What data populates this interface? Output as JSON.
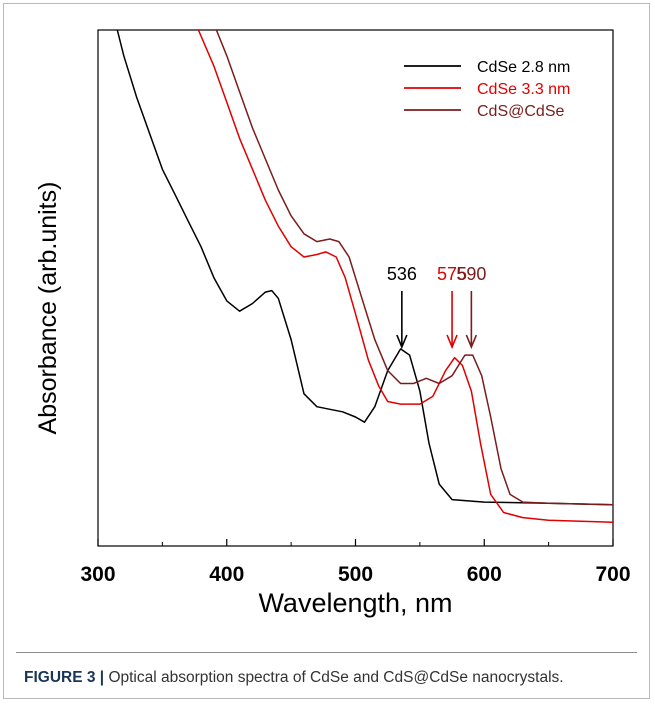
{
  "figure_label": "FIGURE 3 |",
  "caption": "Optical absorption spectra of CdSe and CdS@CdSe nanocrystals.",
  "chart_data": {
    "type": "line",
    "title": "",
    "xlabel": "Wavelength, nm",
    "ylabel": "Absorbance (arb.units)",
    "xlim": [
      300,
      700
    ],
    "ylim": [
      0,
      1
    ],
    "x_ticks": [
      300,
      400,
      500,
      600,
      700
    ],
    "y_ticks_shown": false,
    "grid": false,
    "legend_position": "top-right",
    "series": [
      {
        "name": "CdSe 2.8 nm",
        "color": "#000000",
        "points": [
          [
            315,
            1.0
          ],
          [
            320,
            0.95
          ],
          [
            330,
            0.87
          ],
          [
            340,
            0.8
          ],
          [
            350,
            0.73
          ],
          [
            360,
            0.68
          ],
          [
            370,
            0.63
          ],
          [
            380,
            0.58
          ],
          [
            390,
            0.52
          ],
          [
            400,
            0.475
          ],
          [
            410,
            0.455
          ],
          [
            420,
            0.47
          ],
          [
            430,
            0.492
          ],
          [
            435,
            0.495
          ],
          [
            440,
            0.48
          ],
          [
            450,
            0.4
          ],
          [
            460,
            0.295
          ],
          [
            470,
            0.27
          ],
          [
            480,
            0.265
          ],
          [
            490,
            0.26
          ],
          [
            500,
            0.25
          ],
          [
            507,
            0.24
          ],
          [
            515,
            0.27
          ],
          [
            525,
            0.34
          ],
          [
            535,
            0.382
          ],
          [
            542,
            0.37
          ],
          [
            550,
            0.3
          ],
          [
            557,
            0.2
          ],
          [
            565,
            0.12
          ],
          [
            575,
            0.09
          ],
          [
            600,
            0.085
          ],
          [
            650,
            0.083
          ],
          [
            700,
            0.08
          ]
        ]
      },
      {
        "name": "CdSe 3.3 nm",
        "color": "#e00000",
        "points": [
          [
            378,
            1.0
          ],
          [
            390,
            0.93
          ],
          [
            400,
            0.86
          ],
          [
            410,
            0.79
          ],
          [
            420,
            0.73
          ],
          [
            430,
            0.67
          ],
          [
            440,
            0.62
          ],
          [
            450,
            0.58
          ],
          [
            460,
            0.56
          ],
          [
            470,
            0.565
          ],
          [
            477,
            0.57
          ],
          [
            485,
            0.56
          ],
          [
            492,
            0.52
          ],
          [
            500,
            0.45
          ],
          [
            510,
            0.36
          ],
          [
            518,
            0.31
          ],
          [
            525,
            0.28
          ],
          [
            535,
            0.275
          ],
          [
            550,
            0.275
          ],
          [
            560,
            0.29
          ],
          [
            570,
            0.34
          ],
          [
            577,
            0.365
          ],
          [
            583,
            0.35
          ],
          [
            590,
            0.3
          ],
          [
            597,
            0.2
          ],
          [
            605,
            0.1
          ],
          [
            615,
            0.065
          ],
          [
            630,
            0.055
          ],
          [
            650,
            0.05
          ],
          [
            700,
            0.046
          ]
        ]
      },
      {
        "name": "CdS@CdSe",
        "color": "#7a1c1c",
        "points": [
          [
            392,
            1.0
          ],
          [
            400,
            0.95
          ],
          [
            410,
            0.88
          ],
          [
            420,
            0.81
          ],
          [
            430,
            0.75
          ],
          [
            440,
            0.69
          ],
          [
            450,
            0.64
          ],
          [
            460,
            0.605
          ],
          [
            470,
            0.59
          ],
          [
            480,
            0.595
          ],
          [
            487,
            0.59
          ],
          [
            495,
            0.56
          ],
          [
            505,
            0.48
          ],
          [
            515,
            0.4
          ],
          [
            525,
            0.34
          ],
          [
            535,
            0.315
          ],
          [
            545,
            0.315
          ],
          [
            555,
            0.325
          ],
          [
            565,
            0.315
          ],
          [
            575,
            0.33
          ],
          [
            585,
            0.37
          ],
          [
            591,
            0.37
          ],
          [
            598,
            0.33
          ],
          [
            605,
            0.25
          ],
          [
            613,
            0.15
          ],
          [
            620,
            0.1
          ],
          [
            630,
            0.085
          ],
          [
            650,
            0.083
          ],
          [
            700,
            0.08
          ]
        ]
      }
    ],
    "annotations": [
      {
        "text": "536",
        "x": 536,
        "color": "#000000"
      },
      {
        "text": "575",
        "x": 575,
        "color": "#e00000"
      },
      {
        "text": "590",
        "x": 590,
        "color": "#7a1c1c"
      }
    ]
  }
}
